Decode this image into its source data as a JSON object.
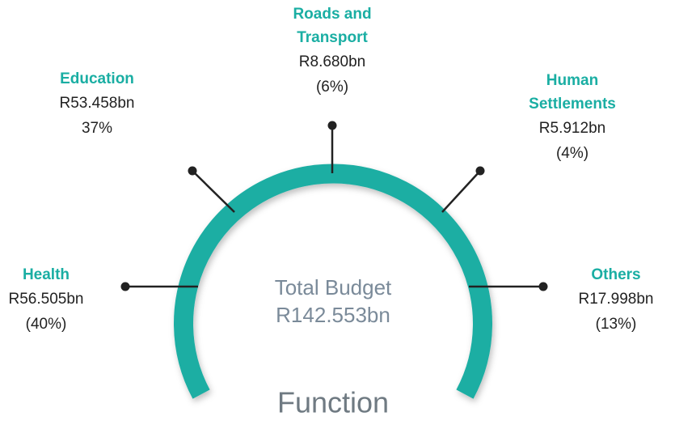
{
  "center": {
    "label": "Total Budget",
    "amount": "R142.553bn"
  },
  "footer": "Function",
  "items": [
    {
      "name": [
        "Health"
      ],
      "amount": "R56.505bn",
      "share": "(40%)"
    },
    {
      "name": [
        "Education"
      ],
      "amount": "R53.458bn",
      "share": "37%"
    },
    {
      "name": [
        "Roads and",
        "Transport"
      ],
      "amount": "R8.680bn",
      "share": "(6%)"
    },
    {
      "name": [
        "Human",
        "Settlements"
      ],
      "amount": "R5.912bn",
      "share": "(4%)"
    },
    {
      "name": [
        "Others"
      ],
      "amount": "R17.998bn",
      "share": "(13%)"
    }
  ]
}
